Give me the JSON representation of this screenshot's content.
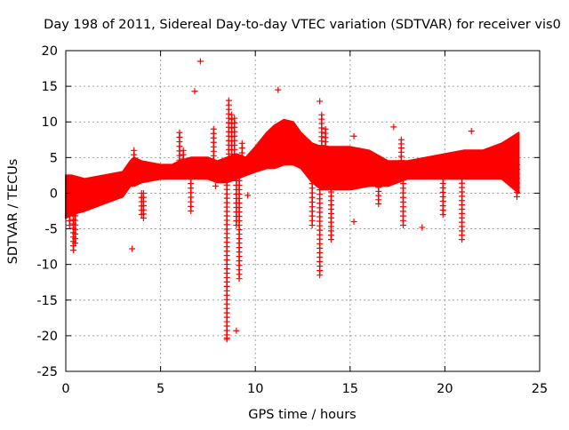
{
  "chart_data": {
    "type": "scatter",
    "title": "Day 198 of 2011, Sidereal Day-to-day VTEC variation (SDTVAR) for receiver vis0",
    "xlabel": "GPS time / hours",
    "ylabel": "SDTVAR / TECUs",
    "xlim": [
      0,
      25
    ],
    "ylim": [
      -25,
      20
    ],
    "x_ticks": [
      0,
      5,
      10,
      15,
      20,
      25
    ],
    "y_ticks": [
      -25,
      -20,
      -15,
      -10,
      -5,
      0,
      5,
      10,
      15,
      20
    ],
    "grid": true,
    "marker": "+",
    "color": "#ff0000",
    "band": {
      "x": [
        0,
        0.3,
        1,
        2,
        3,
        3.4,
        3.6,
        4,
        5,
        5.6,
        6,
        6.6,
        7,
        7.5,
        8,
        8.5,
        9,
        9.5,
        10,
        10.6,
        11,
        11.5,
        12,
        12.4,
        13,
        13.5,
        14,
        15,
        16,
        17,
        18,
        19,
        20,
        21,
        22,
        23,
        23.9
      ],
      "upper": [
        2.5,
        2.5,
        2.0,
        2.5,
        3.0,
        4.5,
        5.0,
        4.5,
        4.0,
        4.0,
        4.5,
        5.0,
        5.0,
        5.0,
        4.5,
        5.0,
        5.5,
        5.0,
        6.5,
        8.5,
        9.5,
        10.3,
        10.0,
        8.5,
        7.0,
        6.5,
        6.5,
        6.5,
        6.0,
        4.5,
        4.5,
        5.0,
        5.5,
        6.0,
        6.0,
        7.0,
        8.5
      ],
      "lower": [
        -3.5,
        -3.0,
        -2.5,
        -1.5,
        -0.5,
        1.0,
        1.0,
        1.5,
        2.0,
        2.0,
        2.0,
        2.0,
        2.0,
        2.0,
        1.5,
        1.5,
        2.0,
        2.5,
        3.0,
        3.5,
        3.5,
        4.0,
        4.0,
        3.5,
        1.5,
        0.5,
        0.5,
        0.5,
        1.0,
        1.0,
        2.0,
        2.0,
        2.0,
        2.0,
        2.0,
        2.0,
        0.0
      ]
    },
    "spikes": [
      {
        "x": 0.2,
        "y_from": 0,
        "y_to": -4.5
      },
      {
        "x": 0.4,
        "y_from": 0,
        "y_to": -8.0
      },
      {
        "x": 0.5,
        "y_from": 0,
        "y_to": -7.0
      },
      {
        "x": 3.6,
        "y_from": 3,
        "y_to": 6.0
      },
      {
        "x": 4.0,
        "y_from": 0,
        "y_to": -3.0
      },
      {
        "x": 4.1,
        "y_from": 0,
        "y_to": -3.5
      },
      {
        "x": 6.0,
        "y_from": 4,
        "y_to": 8.5
      },
      {
        "x": 6.2,
        "y_from": 3,
        "y_to": 6.0
      },
      {
        "x": 6.6,
        "y_from": 2,
        "y_to": -2.5
      },
      {
        "x": 7.8,
        "y_from": 4,
        "y_to": 9.0
      },
      {
        "x": 8.5,
        "y_from": 3,
        "y_to": -20.5
      },
      {
        "x": 8.6,
        "y_from": 3,
        "y_to": 13.0
      },
      {
        "x": 8.75,
        "y_from": 3,
        "y_to": 11.0
      },
      {
        "x": 8.9,
        "y_from": 3,
        "y_to": 10.5
      },
      {
        "x": 9.0,
        "y_from": 3,
        "y_to": -4.5
      },
      {
        "x": 9.15,
        "y_from": 3,
        "y_to": -12.0
      },
      {
        "x": 9.3,
        "y_from": 3,
        "y_to": 7.0
      },
      {
        "x": 13.0,
        "y_from": 2,
        "y_to": -4.5
      },
      {
        "x": 13.4,
        "y_from": 3,
        "y_to": -11.5
      },
      {
        "x": 13.5,
        "y_from": 3,
        "y_to": 11.0
      },
      {
        "x": 13.7,
        "y_from": 3,
        "y_to": 9.0
      },
      {
        "x": 14.0,
        "y_from": 2,
        "y_to": -6.5
      },
      {
        "x": 16.5,
        "y_from": 2,
        "y_to": -1.5
      },
      {
        "x": 17.7,
        "y_from": 4,
        "y_to": 7.5
      },
      {
        "x": 17.8,
        "y_from": 2,
        "y_to": -4.5
      },
      {
        "x": 19.9,
        "y_from": 2,
        "y_to": -3.0
      },
      {
        "x": 20.9,
        "y_from": 2,
        "y_to": -6.5
      },
      {
        "x": 23.8,
        "y_from": 4,
        "y_to": -0.5
      }
    ],
    "outliers": [
      {
        "x": 3.5,
        "y": -7.8
      },
      {
        "x": 6.8,
        "y": 14.3
      },
      {
        "x": 7.1,
        "y": 18.5
      },
      {
        "x": 7.9,
        "y": 1.0
      },
      {
        "x": 8.5,
        "y": -20.3
      },
      {
        "x": 9.0,
        "y": -19.3
      },
      {
        "x": 9.6,
        "y": -0.3
      },
      {
        "x": 11.2,
        "y": 14.5
      },
      {
        "x": 13.4,
        "y": 12.9
      },
      {
        "x": 15.2,
        "y": 8.0
      },
      {
        "x": 15.2,
        "y": -4.0
      },
      {
        "x": 17.3,
        "y": 9.3
      },
      {
        "x": 18.8,
        "y": -4.8
      },
      {
        "x": 21.4,
        "y": 8.7
      }
    ]
  }
}
